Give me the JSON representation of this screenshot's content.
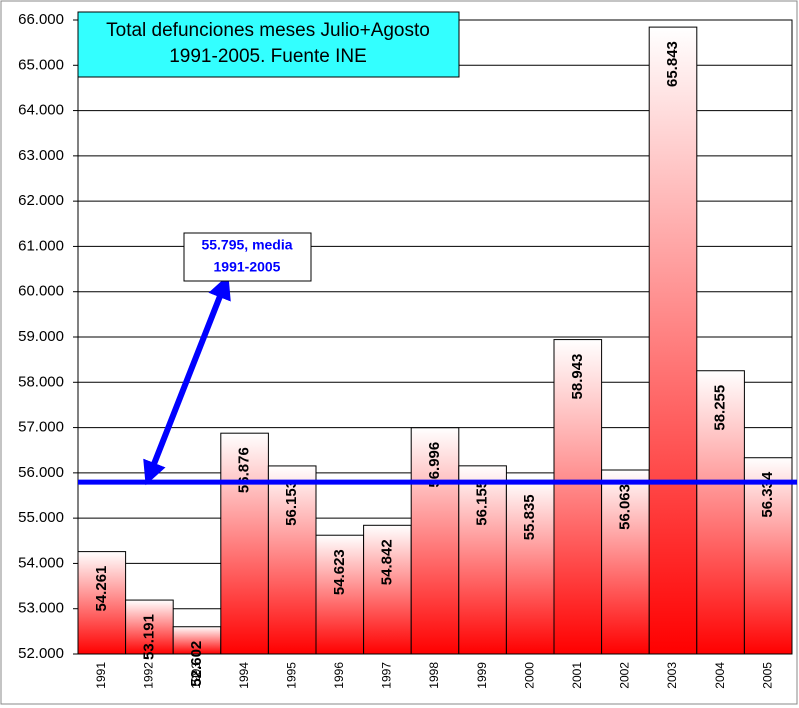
{
  "chart_data": {
    "type": "bar",
    "title": [
      "Total defunciones meses Julio+Agosto",
      "1991-2005. Fuente INE"
    ],
    "categories": [
      "1991",
      "1992",
      "1993",
      "1994",
      "1995",
      "1996",
      "1997",
      "1998",
      "1999",
      "2000",
      "2001",
      "2002",
      "2003",
      "2004",
      "2005"
    ],
    "values": [
      54261,
      53191,
      52602,
      56876,
      56153,
      54623,
      54842,
      56996,
      56155,
      55835,
      58943,
      56063,
      65843,
      58255,
      56334
    ],
    "value_labels": [
      "54.261",
      "53.191",
      "52.602",
      "56.876",
      "56.153",
      "54.623",
      "54.842",
      "56.996",
      "56.155",
      "55.835",
      "58.943",
      "56.063",
      "65.843",
      "58.255",
      "56.334"
    ],
    "color": "#ff0000",
    "ylim": [
      52000,
      66000
    ],
    "yticks": [
      {
        "value": 52000,
        "label": "52.000"
      },
      {
        "value": 53000,
        "label": "53.000"
      },
      {
        "value": 54000,
        "label": "54.000"
      },
      {
        "value": 55000,
        "label": "55.000"
      },
      {
        "value": 56000,
        "label": "56.000"
      },
      {
        "value": 57000,
        "label": "57.000"
      },
      {
        "value": 58000,
        "label": "58.000"
      },
      {
        "value": 59000,
        "label": "59.000"
      },
      {
        "value": 60000,
        "label": "60.000"
      },
      {
        "value": 61000,
        "label": "61.000"
      },
      {
        "value": 62000,
        "label": "62.000"
      },
      {
        "value": 63000,
        "label": "63.000"
      },
      {
        "value": 64000,
        "label": "64.000"
      },
      {
        "value": 65000,
        "label": "65.000"
      },
      {
        "value": 66000,
        "label": "66.000"
      }
    ],
    "grid": true,
    "annotation": {
      "value": 55795,
      "lines": [
        "55.795, media",
        "1991-2005"
      ],
      "color": "#0000ff"
    }
  }
}
